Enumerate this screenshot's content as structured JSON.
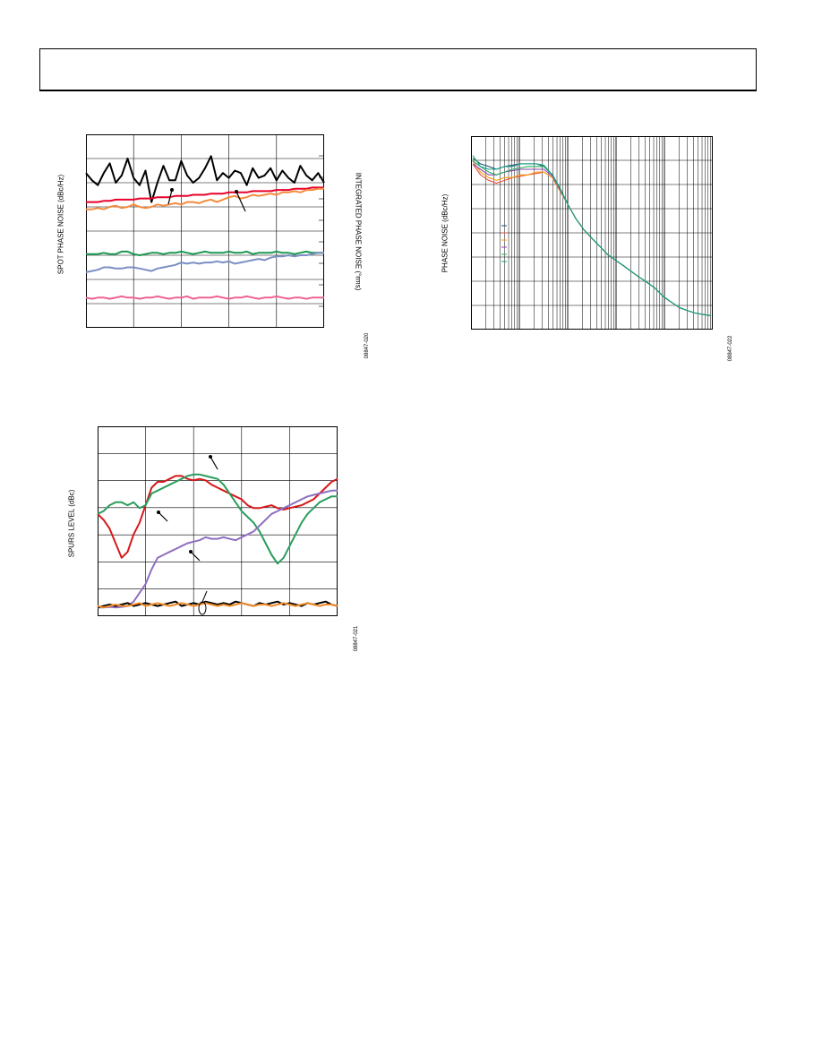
{
  "chart_data": [
    {
      "id": "chart1",
      "type": "line",
      "ylabel": "SPOT PHASE NOISE (dBc/Hz)",
      "y2label": "INTEGRATED PHASE NOISE (°rms)",
      "figure_id": "08847-020",
      "x": [
        0,
        1,
        2,
        3,
        4,
        5,
        6,
        7,
        8,
        9,
        10,
        11,
        12,
        13,
        14,
        15,
        16,
        17,
        18,
        19,
        20,
        21,
        22,
        23,
        24,
        25,
        26,
        27,
        28,
        29,
        30,
        31,
        32,
        33,
        34,
        35,
        36,
        37,
        38,
        39,
        40
      ],
      "series": [
        {
          "color": "#000000",
          "values": [
            6.4,
            6.1,
            5.9,
            6.4,
            6.8,
            6.0,
            6.3,
            7.0,
            6.2,
            5.9,
            6.5,
            5.2,
            6.0,
            6.7,
            6.1,
            6.1,
            6.9,
            6.3,
            6.0,
            6.2,
            6.6,
            7.1,
            6.1,
            6.4,
            6.2,
            6.5,
            6.4,
            5.9,
            6.6,
            6.2,
            6.3,
            6.6,
            6.1,
            6.5,
            6.2,
            6.0,
            6.7,
            6.3,
            6.1,
            6.4,
            6.0
          ]
        },
        {
          "color": "#e8002a",
          "values": [
            5.2,
            5.2,
            5.2,
            5.25,
            5.25,
            5.3,
            5.3,
            5.3,
            5.3,
            5.35,
            5.35,
            5.35,
            5.4,
            5.4,
            5.4,
            5.45,
            5.45,
            5.45,
            5.5,
            5.5,
            5.5,
            5.55,
            5.55,
            5.55,
            5.6,
            5.6,
            5.6,
            5.6,
            5.65,
            5.65,
            5.65,
            5.65,
            5.7,
            5.7,
            5.7,
            5.75,
            5.75,
            5.75,
            5.8,
            5.8,
            5.8
          ]
        },
        {
          "color": "#f58a3d",
          "values": [
            4.9,
            4.9,
            4.95,
            4.9,
            5.0,
            5.05,
            4.95,
            5.0,
            5.1,
            5.0,
            4.95,
            5.0,
            5.1,
            5.05,
            5.1,
            5.15,
            5.1,
            5.2,
            5.2,
            5.15,
            5.25,
            5.3,
            5.2,
            5.3,
            5.4,
            5.45,
            5.35,
            5.4,
            5.5,
            5.45,
            5.5,
            5.55,
            5.5,
            5.6,
            5.6,
            5.65,
            5.6,
            5.7,
            5.7,
            5.75,
            5.75
          ]
        },
        {
          "color": "#1a9850",
          "values": [
            3.05,
            3.05,
            3.05,
            3.1,
            3.05,
            3.05,
            3.15,
            3.15,
            3.05,
            3.0,
            3.05,
            3.1,
            3.1,
            3.05,
            3.1,
            3.1,
            3.15,
            3.1,
            3.05,
            3.1,
            3.15,
            3.1,
            3.1,
            3.1,
            3.15,
            3.1,
            3.1,
            3.15,
            3.05,
            3.1,
            3.1,
            3.1,
            3.15,
            3.1,
            3.1,
            3.05,
            3.1,
            3.15,
            3.1,
            3.1,
            3.1
          ]
        },
        {
          "color": "#7b8fc4",
          "values": [
            2.3,
            2.35,
            2.4,
            2.5,
            2.5,
            2.45,
            2.45,
            2.5,
            2.5,
            2.45,
            2.4,
            2.35,
            2.45,
            2.5,
            2.55,
            2.6,
            2.7,
            2.65,
            2.7,
            2.65,
            2.7,
            2.7,
            2.75,
            2.7,
            2.75,
            2.65,
            2.7,
            2.75,
            2.8,
            2.85,
            2.8,
            2.9,
            2.95,
            2.95,
            3.0,
            2.95,
            3.0,
            3.0,
            3.05,
            3.1,
            3.1
          ]
        },
        {
          "color": "#f06292",
          "values": [
            1.25,
            1.2,
            1.25,
            1.25,
            1.2,
            1.25,
            1.3,
            1.25,
            1.25,
            1.2,
            1.25,
            1.25,
            1.3,
            1.25,
            1.2,
            1.25,
            1.25,
            1.3,
            1.2,
            1.25,
            1.25,
            1.25,
            1.3,
            1.25,
            1.2,
            1.25,
            1.25,
            1.3,
            1.25,
            1.2,
            1.25,
            1.25,
            1.3,
            1.25,
            1.2,
            1.25,
            1.25,
            1.2,
            1.25,
            1.25,
            1.25
          ]
        }
      ]
    },
    {
      "id": "chart2",
      "type": "line",
      "ylabel": "PHASE NOISE (dBc/Hz)",
      "figure_id": "08847-022",
      "xscale": "log",
      "x": [
        1,
        1.4,
        2,
        2.8,
        4,
        5.6,
        8,
        11,
        16,
        22,
        32,
        45,
        64,
        90,
        128,
        180,
        256,
        362,
        512,
        724,
        1000,
        1400,
        2000,
        2800,
        4000,
        5600,
        8000,
        11000,
        16000,
        22000,
        32000
      ],
      "series": [
        {
          "color": "#1b4f72",
          "values": [
            6.2,
            6.0,
            5.9,
            5.8,
            5.9,
            5.95,
            6.0,
            6.0,
            6.0,
            5.9,
            5.6,
            5.1,
            4.5,
            4.0,
            3.6,
            3.3,
            3.0,
            2.7,
            2.5,
            2.3,
            2.1,
            1.9,
            1.7,
            1.5,
            1.2,
            1.0,
            0.8,
            0.7,
            0.6,
            0.55,
            0.5
          ]
        },
        {
          "color": "#e74c3c",
          "values": [
            6.0,
            5.6,
            5.4,
            5.3,
            5.4,
            5.5,
            5.55,
            5.6,
            5.65,
            5.7,
            5.5,
            5.0,
            4.5,
            4.0,
            3.6,
            3.3,
            3.0,
            2.7,
            2.5,
            2.3,
            2.1,
            1.9,
            1.7,
            1.5,
            1.2,
            1.0,
            0.8,
            0.7,
            0.6,
            0.55,
            0.5
          ]
        },
        {
          "color": "#f39c12",
          "values": [
            6.1,
            5.7,
            5.5,
            5.4,
            5.5,
            5.5,
            5.6,
            5.6,
            5.7,
            5.7,
            5.5,
            5.0,
            4.5,
            4.0,
            3.6,
            3.3,
            3.0,
            2.7,
            2.5,
            2.3,
            2.1,
            1.9,
            1.7,
            1.5,
            1.2,
            1.0,
            0.8,
            0.7,
            0.6,
            0.55,
            0.5
          ]
        },
        {
          "color": "#8e44ad",
          "values": [
            6.0,
            5.8,
            5.6,
            5.6,
            5.7,
            5.75,
            5.8,
            5.8,
            5.8,
            5.8,
            5.55,
            5.05,
            4.5,
            4.0,
            3.6,
            3.3,
            3.0,
            2.7,
            2.5,
            2.3,
            2.1,
            1.9,
            1.7,
            1.5,
            1.2,
            1.0,
            0.8,
            0.7,
            0.6,
            0.55,
            0.5
          ]
        },
        {
          "color": "#27ae60",
          "values": [
            6.3,
            5.9,
            5.7,
            5.6,
            5.7,
            5.8,
            5.85,
            5.9,
            5.9,
            5.9,
            5.6,
            5.1,
            4.5,
            4.0,
            3.6,
            3.3,
            3.0,
            2.7,
            2.5,
            2.3,
            2.1,
            1.9,
            1.7,
            1.5,
            1.2,
            1.0,
            0.8,
            0.7,
            0.6,
            0.55,
            0.5
          ]
        },
        {
          "color": "#16a085",
          "values": [
            6.1,
            5.9,
            5.8,
            5.8,
            5.9,
            5.9,
            6.0,
            6.0,
            6.0,
            5.95,
            5.6,
            5.1,
            4.5,
            4.0,
            3.6,
            3.3,
            3.0,
            2.7,
            2.5,
            2.3,
            2.1,
            1.9,
            1.7,
            1.5,
            1.2,
            1.0,
            0.8,
            0.7,
            0.6,
            0.55,
            0.5
          ]
        }
      ]
    },
    {
      "id": "chart3",
      "type": "line",
      "ylabel": "SPURS LEVEL (dBc)",
      "figure_id": "08847-021",
      "x": [
        0,
        1,
        2,
        3,
        4,
        5,
        6,
        7,
        8,
        9,
        10,
        11,
        12,
        13,
        14,
        15,
        16,
        17,
        18,
        19,
        20,
        21,
        22,
        23,
        24,
        25,
        26,
        27,
        28,
        29,
        30,
        31,
        32,
        33,
        34,
        35,
        36,
        37,
        38,
        39,
        40
      ],
      "series": [
        {
          "color": "#d7191c",
          "values": [
            3.5,
            3.3,
            3.0,
            2.5,
            2.0,
            2.2,
            2.8,
            3.2,
            3.8,
            4.4,
            4.6,
            4.6,
            4.7,
            4.8,
            4.8,
            4.7,
            4.65,
            4.7,
            4.65,
            4.5,
            4.4,
            4.3,
            4.2,
            4.1,
            4.0,
            3.8,
            3.7,
            3.7,
            3.75,
            3.8,
            3.7,
            3.65,
            3.7,
            3.75,
            3.8,
            3.9,
            4.0,
            4.2,
            4.4,
            4.6,
            4.7
          ]
        },
        {
          "color": "#2a9d5c",
          "values": [
            3.5,
            3.6,
            3.8,
            3.9,
            3.9,
            3.8,
            3.9,
            3.7,
            3.8,
            4.2,
            4.3,
            4.4,
            4.5,
            4.6,
            4.7,
            4.8,
            4.85,
            4.85,
            4.8,
            4.75,
            4.7,
            4.5,
            4.2,
            3.9,
            3.6,
            3.4,
            3.2,
            2.9,
            2.5,
            2.1,
            1.8,
            2.0,
            2.4,
            2.8,
            3.2,
            3.5,
            3.7,
            3.9,
            4.0,
            4.1,
            4.1
          ]
        },
        {
          "color": "#8e6fc1",
          "values": [
            0.3,
            0.3,
            0.32,
            0.3,
            0.32,
            0.35,
            0.5,
            0.8,
            1.1,
            1.6,
            2.0,
            2.1,
            2.2,
            2.3,
            2.4,
            2.5,
            2.55,
            2.6,
            2.7,
            2.65,
            2.65,
            2.7,
            2.65,
            2.6,
            2.7,
            2.8,
            2.9,
            3.1,
            3.3,
            3.5,
            3.6,
            3.7,
            3.8,
            3.9,
            4.0,
            4.1,
            4.15,
            4.2,
            4.25,
            4.3,
            4.3
          ]
        },
        {
          "color": "#000000",
          "values": [
            0.3,
            0.35,
            0.4,
            0.35,
            0.4,
            0.45,
            0.35,
            0.4,
            0.45,
            0.4,
            0.35,
            0.4,
            0.45,
            0.5,
            0.35,
            0.4,
            0.45,
            0.4,
            0.5,
            0.45,
            0.4,
            0.45,
            0.4,
            0.5,
            0.45,
            0.4,
            0.35,
            0.45,
            0.4,
            0.45,
            0.5,
            0.4,
            0.45,
            0.4,
            0.35,
            0.45,
            0.4,
            0.45,
            0.5,
            0.4,
            0.35
          ]
        },
        {
          "color": "#f28c28",
          "values": [
            0.35,
            0.3,
            0.35,
            0.4,
            0.35,
            0.35,
            0.4,
            0.45,
            0.35,
            0.4,
            0.45,
            0.4,
            0.35,
            0.4,
            0.45,
            0.4,
            0.35,
            0.4,
            0.45,
            0.4,
            0.35,
            0.4,
            0.35,
            0.4,
            0.45,
            0.4,
            0.35,
            0.4,
            0.4,
            0.35,
            0.4,
            0.45,
            0.4,
            0.35,
            0.4,
            0.45,
            0.4,
            0.35,
            0.4,
            0.4,
            0.35
          ]
        }
      ]
    }
  ]
}
